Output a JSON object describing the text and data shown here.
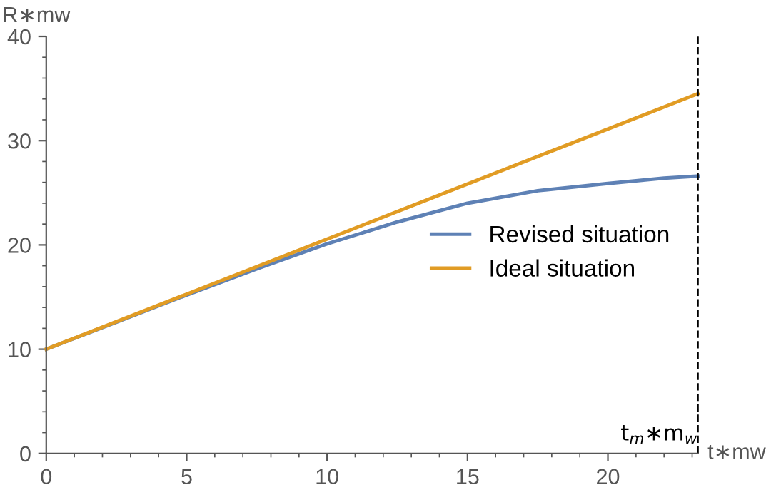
{
  "chart_data": {
    "type": "line",
    "xlabel": "t∗mw",
    "ylabel": "R∗mw",
    "xlim": [
      0,
      23.2
    ],
    "ylim": [
      0,
      40
    ],
    "xticks": [
      0,
      5,
      10,
      15,
      20
    ],
    "yticks": [
      0,
      10,
      20,
      30,
      40
    ],
    "series": [
      {
        "name": "Revised situation",
        "color": "#5e81b5",
        "x": [
          0,
          2.5,
          5,
          7.5,
          10,
          12.5,
          15,
          17.5,
          20,
          22,
          23.2
        ],
        "values": [
          10,
          12.6,
          15.2,
          17.7,
          20.1,
          22.2,
          24.0,
          25.2,
          25.9,
          26.4,
          26.6
        ]
      },
      {
        "name": "Ideal situation",
        "color": "#e19c24",
        "x": [
          0,
          23.2
        ],
        "values": [
          10,
          34.5
        ]
      }
    ],
    "ref_lines": [
      {
        "axis": "x",
        "value": 23.2,
        "label": "t$_{m}$∗m$_{w}$",
        "color": "#000000",
        "line_style": "dashed"
      }
    ],
    "legend": "right",
    "grid": false,
    "marker": "none",
    "line_style": "solid"
  }
}
